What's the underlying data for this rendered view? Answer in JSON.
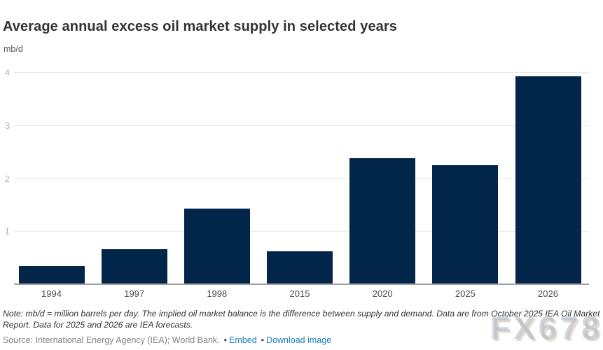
{
  "header": {
    "title": "Average annual excess oil market supply in selected years",
    "unit": "mb/d"
  },
  "chart_data": {
    "type": "bar",
    "title": "Average annual excess oil market supply in selected years",
    "xlabel": "",
    "ylabel": "mb/d",
    "categories": [
      "1994",
      "1997",
      "1998",
      "2015",
      "2020",
      "2025",
      "2026"
    ],
    "values": [
      0.35,
      0.66,
      1.43,
      0.62,
      2.38,
      2.25,
      3.93
    ],
    "yticks": [
      1,
      2,
      3,
      4
    ],
    "ylim": [
      0,
      4.2
    ],
    "grid": true,
    "legend": false,
    "bar_color": "#02254a",
    "gridline_color": "#e8e8e8",
    "axis_color": "#a3a3a3"
  },
  "footer": {
    "note_line1": "Note: mb/d = million barrels per day. The implied oil market balance is the difference between supply and demand. Data are from October 2025 IEA Oil Market",
    "note_line2": "Report. Data for 2025 and 2026 are IEA forecasts.",
    "source_prefix": "Source: International Energy Agency (IEA); World Bank.",
    "bullet": "•",
    "links": [
      {
        "label": "Embed"
      },
      {
        "label": "Download image"
      }
    ],
    "link_color": "#1e81c2"
  },
  "watermark": "FX678"
}
